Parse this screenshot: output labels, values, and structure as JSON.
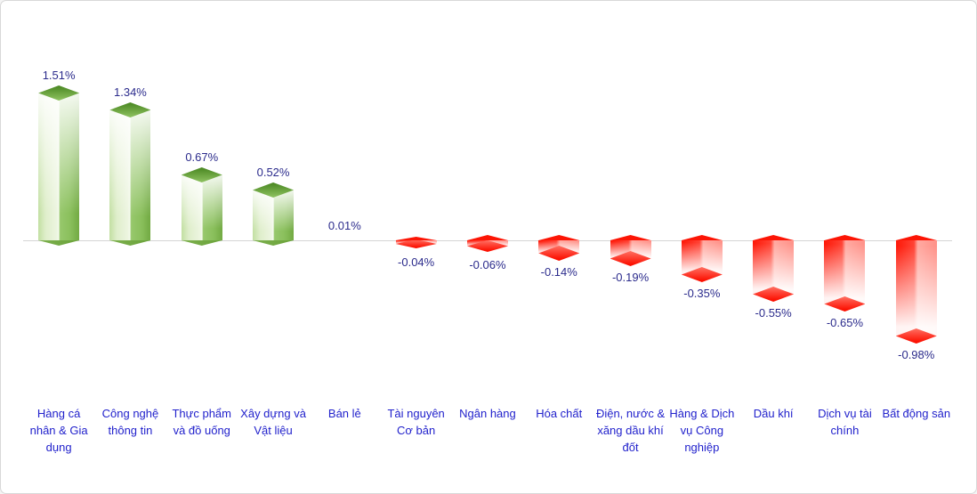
{
  "chart_data": {
    "type": "bar",
    "categories": [
      "Hàng cá nhân & Gia dụng",
      "Công nghệ thông tin",
      "Thực phẩm và đồ uống",
      "Xây dựng và Vật liệu",
      "Bán lẻ",
      "Tài nguyên Cơ bản",
      "Ngân hàng",
      "Hóa chất",
      "Điện, nước & xăng dầu khí đốt",
      "Hàng & Dịch vụ Công nghiệp",
      "Dầu khí",
      "Dịch vụ tài chính",
      "Bất động sản"
    ],
    "category_lines": [
      [
        "Hàng cá",
        "nhân & Gia",
        "dụng"
      ],
      [
        "Công nghệ",
        "thông tin"
      ],
      [
        "Thực phẩm",
        "và đồ uống"
      ],
      [
        "Xây dựng và",
        "Vật liệu"
      ],
      [
        "Bán lẻ"
      ],
      [
        "Tài nguyên",
        "Cơ bản"
      ],
      [
        "Ngân hàng"
      ],
      [
        "Hóa chất"
      ],
      [
        "Điện, nước &",
        "xăng dầu khí",
        "đốt"
      ],
      [
        "Hàng & Dịch",
        "vụ Công",
        "nghiệp"
      ],
      [
        "Dầu khí"
      ],
      [
        "Dịch vụ tài",
        "chính"
      ],
      [
        "Bất động sản"
      ]
    ],
    "values": [
      1.51,
      1.34,
      0.67,
      0.52,
      0.01,
      -0.04,
      -0.06,
      -0.14,
      -0.19,
      -0.35,
      -0.55,
      -0.65,
      -0.98
    ],
    "value_labels": [
      "1.51%",
      "1.34%",
      "0.67%",
      "0.52%",
      "0.01%",
      "-0.04%",
      "-0.06%",
      "-0.14%",
      "-0.19%",
      "-0.35%",
      "-0.55%",
      "-0.65%",
      "-0.98%"
    ],
    "xlabel": "",
    "ylabel": "",
    "ylim": [
      -1.1,
      1.7
    ],
    "grid": false,
    "legend": null,
    "colors": {
      "positive_bar": "#72aa43",
      "positive_cap": "#4e8b26",
      "negative_bar": "#fc1505",
      "negative_cap": "#fc0f00",
      "value_text": "#2b2b8c",
      "category_text": "#2222cc",
      "axis_line": "#d4d4d4",
      "panel_border": "#d8d8d8",
      "background": "#ffffff"
    }
  }
}
